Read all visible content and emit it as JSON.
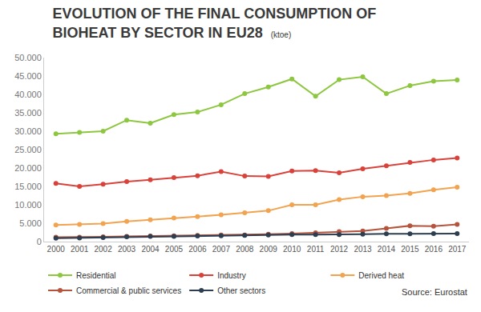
{
  "chart_data": {
    "type": "line",
    "title": "EVOLUTION OF THE FINAL CONSUMPTION OF BIOHEAT BY SECTOR IN EU28",
    "subtitle": "(ktoe)",
    "annotations": [
      {
        "text": "Source: Eurostat"
      }
    ],
    "categories": [
      "2000",
      "2001",
      "2002",
      "2003",
      "2004",
      "2005",
      "2006",
      "2007",
      "2008",
      "2009",
      "2010",
      "2011",
      "2012",
      "2013",
      "2014",
      "2015",
      "2016",
      "2017"
    ],
    "series": [
      {
        "name": "Residential",
        "color": "#8dc63f",
        "marker": "circle",
        "line_style": "solid",
        "values": [
          29300,
          29700,
          30000,
          33000,
          32200,
          34500,
          35200,
          37200,
          40200,
          42000,
          44200,
          39500,
          44000,
          44800,
          40200,
          42400,
          43600,
          43900
        ]
      },
      {
        "name": "Industry",
        "color": "#d9423a",
        "marker": "circle",
        "line_style": "solid",
        "values": [
          15800,
          15000,
          15600,
          16300,
          16800,
          17400,
          17900,
          19000,
          17800,
          17700,
          19200,
          19300,
          18700,
          19800,
          20600,
          21500,
          22200,
          22700
        ]
      },
      {
        "name": "Derived heat",
        "color": "#f2a34f",
        "marker": "circle",
        "line_style": "solid",
        "values": [
          4500,
          4700,
          4900,
          5500,
          5900,
          6400,
          6800,
          7300,
          7800,
          8400,
          10000,
          10000,
          11400,
          12200,
          12500,
          13100,
          14100,
          14800
        ]
      },
      {
        "name": "Commercial & public services",
        "color": "#b5533c",
        "marker": "circle",
        "line_style": "solid",
        "values": [
          1200,
          1200,
          1300,
          1400,
          1500,
          1600,
          1700,
          1800,
          1800,
          2000,
          2200,
          2400,
          2700,
          2900,
          3600,
          4300,
          4200,
          4700
        ]
      },
      {
        "name": "Other sectors",
        "color": "#2c3e50",
        "marker": "circle",
        "line_style": "solid",
        "values": [
          900,
          1000,
          1100,
          1300,
          1400,
          1400,
          1500,
          1600,
          1700,
          1800,
          1900,
          1900,
          1900,
          2000,
          2100,
          2100,
          2200,
          2200
        ]
      }
    ],
    "ylim": [
      0,
      50000
    ],
    "yticks": [
      0,
      {
        "value": 5000,
        "label": "5.000"
      },
      {
        "value": 10000,
        "label": "10.000"
      },
      {
        "value": 15000,
        "label": "15.000"
      },
      {
        "value": 20000,
        "label": "20.000"
      },
      {
        "value": 25000,
        "label": "25.000"
      },
      {
        "value": 30000,
        "label": "30.000"
      },
      {
        "value": 35000,
        "label": "35.000"
      },
      {
        "value": 40000,
        "label": "40.000"
      },
      {
        "value": 45000,
        "label": "45.000"
      },
      {
        "value": 50000,
        "label": "50.000"
      }
    ],
    "grid": false,
    "legend": "bottom"
  }
}
